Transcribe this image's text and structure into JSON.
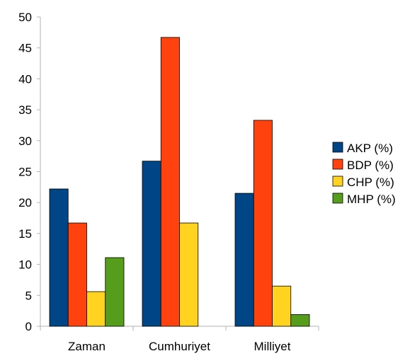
{
  "chart_data": {
    "type": "bar",
    "categories": [
      "Zaman",
      "Cumhuriyet",
      "Milliyet"
    ],
    "series": [
      {
        "name": "AKP (%)",
        "color": "#004586",
        "values": [
          22.2,
          26.7,
          21.5
        ]
      },
      {
        "name": "BDP (%)",
        "color": "#ff420e",
        "values": [
          16.7,
          46.7,
          33.3
        ]
      },
      {
        "name": "CHP (%)",
        "color": "#ffd320",
        "values": [
          5.6,
          16.7,
          6.5
        ]
      },
      {
        "name": "MHP (%)",
        "color": "#579d1c",
        "values": [
          11.1,
          0,
          1.9
        ]
      }
    ],
    "y_ticks": [
      "0",
      "5",
      "10",
      "15",
      "20",
      "25",
      "30",
      "35",
      "40",
      "45",
      "50"
    ],
    "ylim": [
      0,
      50
    ],
    "grid": false,
    "legend_position": "right"
  }
}
